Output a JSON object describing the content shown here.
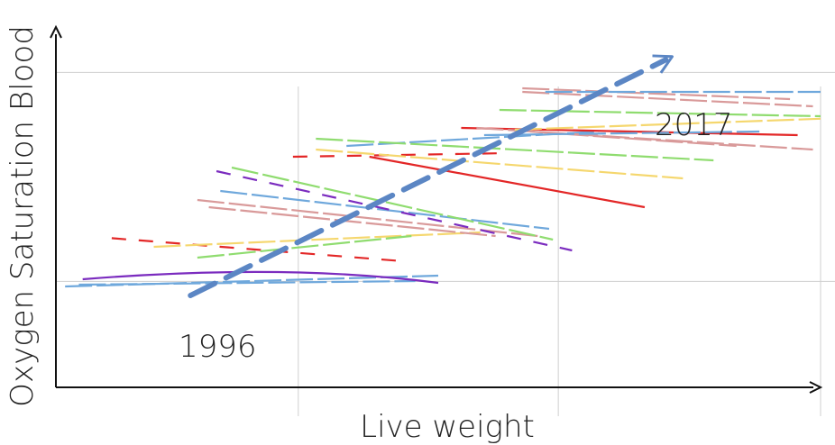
{
  "chart_data": {
    "type": "line",
    "title": "",
    "xlabel": "Live weight",
    "ylabel": "Oxygen Saturation Blood",
    "xlim": [
      0,
      100
    ],
    "ylim": [
      0,
      100
    ],
    "grid": true,
    "x_gridlines": [
      31.7,
      65.7,
      100
    ],
    "y_gridlines": [
      29.4,
      87.4
    ],
    "legend": "none",
    "trend_arrow": {
      "color": "#5b86c4",
      "start": {
        "x": 17.6,
        "y": 25.5,
        "label": "1996"
      },
      "end": {
        "x": 80.6,
        "y": 91.8,
        "label": "2017"
      }
    },
    "series": [
      {
        "color": "#6fa8dc",
        "dash": "long",
        "values": [
          [
            1.2,
            28.0
          ],
          [
            50.0,
            31.0
          ]
        ]
      },
      {
        "color": "#6fa8dc",
        "dash": "long",
        "values": [
          [
            3.0,
            28.5
          ],
          [
            47.0,
            29.5
          ]
        ]
      },
      {
        "color": "#7b2cbf",
        "dash": "solid",
        "values": [
          [
            3.5,
            30.0
          ],
          [
            30.0,
            34.5
          ],
          [
            50.0,
            29.0
          ]
        ]
      },
      {
        "color": "#e32727",
        "dash": "dash",
        "values": [
          [
            7.3,
            41.4
          ],
          [
            45.5,
            35.0
          ]
        ]
      },
      {
        "color": "#f5d76e",
        "dash": "long",
        "values": [
          [
            12.8,
            39.0
          ],
          [
            55.5,
            43.0
          ]
        ]
      },
      {
        "color": "#8fdc6f",
        "dash": "long",
        "values": [
          [
            18.5,
            36.0
          ],
          [
            46.5,
            42.0
          ]
        ]
      },
      {
        "color": "#d99a9a",
        "dash": "long",
        "values": [
          [
            18.5,
            52.0
          ],
          [
            63.0,
            42.0
          ]
        ]
      },
      {
        "color": "#d99a9a",
        "dash": "long",
        "values": [
          [
            20.0,
            50.0
          ],
          [
            57.5,
            42.0
          ]
        ]
      },
      {
        "color": "#6fa8dc",
        "dash": "long",
        "values": [
          [
            21.5,
            54.5
          ],
          [
            64.5,
            44.0
          ]
        ]
      },
      {
        "color": "#7b2cbf",
        "dash": "dash",
        "values": [
          [
            21.0,
            60.0
          ],
          [
            67.5,
            38.0
          ]
        ]
      },
      {
        "color": "#8fdc6f",
        "dash": "long",
        "values": [
          [
            23.0,
            61.0
          ],
          [
            65.0,
            41.0
          ]
        ]
      },
      {
        "color": "#e32727",
        "dash": "dash",
        "values": [
          [
            31.0,
            64.0
          ],
          [
            59.0,
            65.0
          ]
        ]
      },
      {
        "color": "#e32727",
        "dash": "solid",
        "values": [
          [
            41.0,
            64.0
          ],
          [
            77.0,
            50.0
          ]
        ]
      },
      {
        "color": "#f5d76e",
        "dash": "long",
        "values": [
          [
            34.0,
            66.0
          ],
          [
            82.0,
            58.0
          ]
        ]
      },
      {
        "color": "#6fa8dc",
        "dash": "long",
        "values": [
          [
            38.0,
            67.0
          ],
          [
            71.0,
            71.0
          ]
        ]
      },
      {
        "color": "#8fdc6f",
        "dash": "long",
        "values": [
          [
            34.0,
            69.0
          ],
          [
            86.0,
            63.0
          ]
        ]
      },
      {
        "color": "#e32727",
        "dash": "solid",
        "values": [
          [
            53.0,
            72.0
          ],
          [
            97.0,
            70.0
          ]
        ]
      },
      {
        "color": "#d99a9a",
        "dash": "long",
        "values": [
          [
            55.0,
            72.0
          ],
          [
            99.0,
            66.0
          ]
        ]
      },
      {
        "color": "#d99a9a",
        "dash": "long",
        "values": [
          [
            62.0,
            71.0
          ],
          [
            89.0,
            67.0
          ]
        ]
      },
      {
        "color": "#6fa8dc",
        "dash": "long",
        "values": [
          [
            56.0,
            70.0
          ],
          [
            92.0,
            71.0
          ]
        ]
      },
      {
        "color": "#f5d76e",
        "dash": "long",
        "values": [
          [
            60.0,
            71.5
          ],
          [
            106.0,
            75.0
          ]
        ]
      },
      {
        "color": "#8fdc6f",
        "dash": "long",
        "values": [
          [
            58.0,
            77.0
          ],
          [
            106.0,
            75.0
          ]
        ]
      },
      {
        "color": "#d99a9a",
        "dash": "long",
        "values": [
          [
            61.0,
            82.0
          ],
          [
            99.0,
            78.0
          ]
        ]
      },
      {
        "color": "#d99a9a",
        "dash": "long",
        "values": [
          [
            61.0,
            83.0
          ],
          [
            96.0,
            80.0
          ]
        ]
      },
      {
        "color": "#6fa8dc",
        "dash": "long",
        "values": [
          [
            64.0,
            82.0
          ],
          [
            104.0,
            82.0
          ]
        ]
      }
    ]
  }
}
